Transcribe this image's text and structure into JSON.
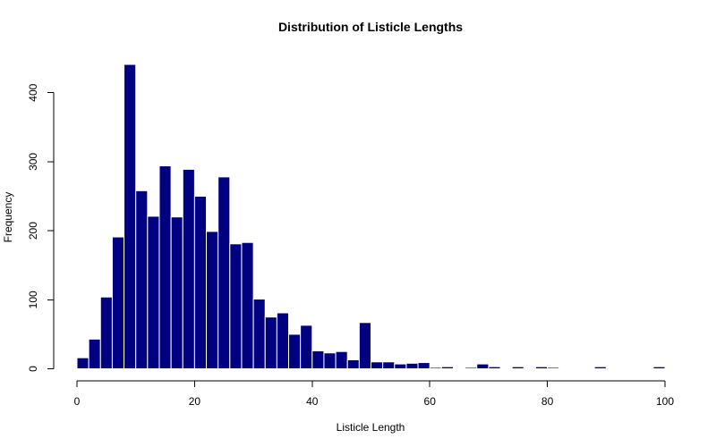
{
  "chart_data": {
    "type": "bar",
    "title": "Distribution of Listicle Lengths",
    "xlabel": "Listicle Length",
    "ylabel": "Frequency",
    "xlim": [
      0,
      100
    ],
    "ylim": [
      0,
      440
    ],
    "x_ticks": [
      0,
      20,
      40,
      60,
      80,
      100
    ],
    "y_ticks": [
      0,
      100,
      200,
      300,
      400
    ],
    "bin_width": 2,
    "bin_starts": [
      0,
      2,
      4,
      6,
      8,
      10,
      12,
      14,
      16,
      18,
      20,
      22,
      24,
      26,
      28,
      30,
      32,
      34,
      36,
      38,
      40,
      42,
      44,
      46,
      48,
      50,
      52,
      54,
      56,
      58,
      60,
      62,
      64,
      66,
      68,
      70,
      72,
      74,
      76,
      78,
      80,
      82,
      84,
      86,
      88,
      90,
      92,
      94,
      96,
      98
    ],
    "values": [
      16,
      43,
      104,
      191,
      441,
      258,
      221,
      294,
      220,
      289,
      250,
      199,
      278,
      181,
      183,
      101,
      75,
      81,
      50,
      63,
      26,
      23,
      25,
      13,
      67,
      10,
      10,
      7,
      8,
      9,
      2,
      3,
      1,
      2,
      7,
      3,
      0,
      3,
      1,
      3,
      2,
      1,
      1,
      1,
      3,
      0,
      0,
      0,
      1,
      3
    ],
    "bar_color": "#000080",
    "bar_border_color": "#ffffff",
    "grid": false,
    "legend": "none"
  }
}
